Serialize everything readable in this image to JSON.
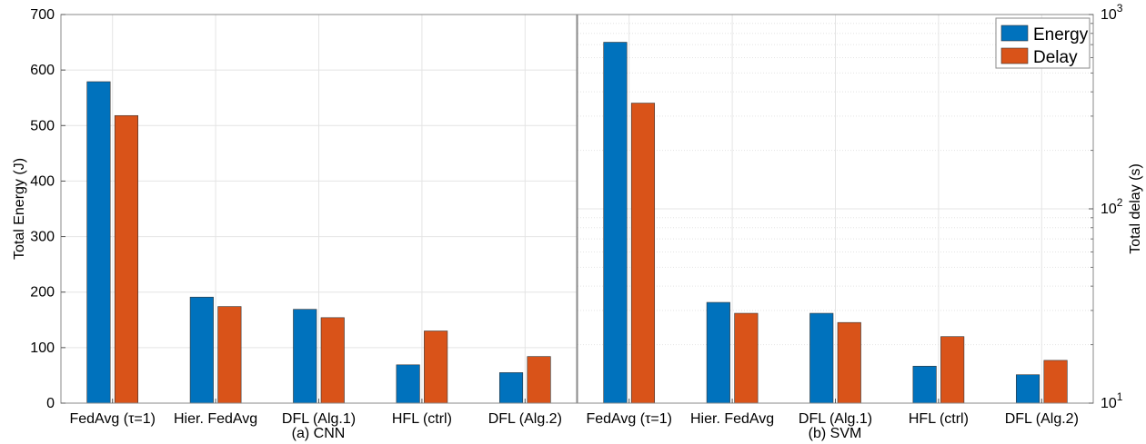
{
  "colors": {
    "energy": "#0072BD",
    "delay": "#D95319"
  },
  "legend": {
    "energy_label": "Energy",
    "delay_label": "Delay"
  },
  "chart_data": [
    {
      "type": "bar",
      "subtitle": "(a) CNN",
      "ylabel": "Total Energy (J)",
      "ylim": [
        0,
        700
      ],
      "yticks": [
        "0",
        "100",
        "200",
        "300",
        "400",
        "500",
        "600",
        "700"
      ],
      "categories": [
        "FedAvg (τ=1)",
        "Hier. FedAvg",
        "DFL (Alg.1)",
        "HFL (ctrl)",
        "DFL (Alg.2)"
      ],
      "series": [
        {
          "name": "Energy",
          "values": [
            579,
            191,
            169,
            69,
            55
          ]
        },
        {
          "name": "Delay",
          "values": [
            518,
            174,
            154,
            130,
            84
          ]
        }
      ],
      "grid": true
    },
    {
      "type": "bar",
      "subtitle": "(b) SVM",
      "ylabel": "Total delay (s)",
      "yscale": "log",
      "ylim": [
        10,
        1000
      ],
      "yticks": [
        "10",
        "100",
        "1000"
      ],
      "categories": [
        "FedAvg (τ=1)",
        "Hier. FedAvg",
        "DFL (Alg.1)",
        "HFL (ctrl)",
        "DFL (Alg.2)"
      ],
      "series": [
        {
          "name": "Energy",
          "values": [
            720,
            33,
            29,
            15.5,
            14
          ]
        },
        {
          "name": "Delay",
          "values": [
            350,
            29,
            26,
            22,
            16.6
          ]
        }
      ],
      "grid": true,
      "legend_position": "top-right"
    }
  ]
}
